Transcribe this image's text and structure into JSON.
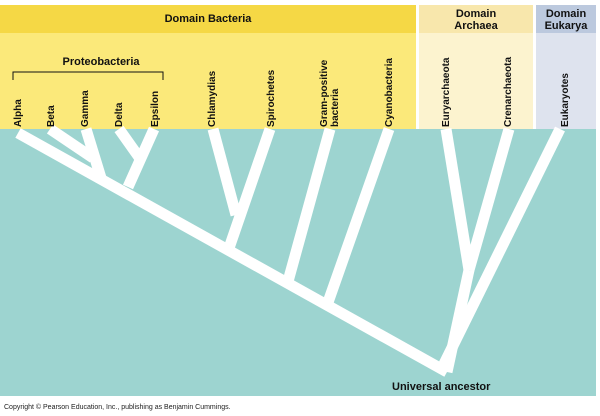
{
  "domains": {
    "bacteria": "Domain Bacteria",
    "archaea": [
      "Domain",
      "Archaea"
    ],
    "eukarya": [
      "Domain",
      "Eukarya"
    ]
  },
  "group_label": "Proteobacteria",
  "taxa": {
    "alpha": "Alpha",
    "beta": "Beta",
    "gamma": "Gamma",
    "delta": "Delta",
    "epsilon": "Epsilon",
    "chlamydias": "Chlamydias",
    "spirochetes": "Spirochetes",
    "gram_positive": [
      "Gram-positive",
      "bacteria"
    ],
    "cyanobacteria": "Cyanobacteria",
    "euryarchaeota": "Euryarchaeota",
    "crenarchaeota": "Crenarchaeota",
    "eukaryotes": "Eukaryotes"
  },
  "root_label": "Universal ancestor",
  "copyright": "Copyright © Pearson Education, Inc., publishing as Benjamin Cummings.",
  "colors": {
    "bacteria": "#fbe97a",
    "archaea": "#fcf3cf",
    "eukarya": "#dee3ee",
    "tree_background": "#9dd4d0",
    "branches": "#ffffff"
  }
}
